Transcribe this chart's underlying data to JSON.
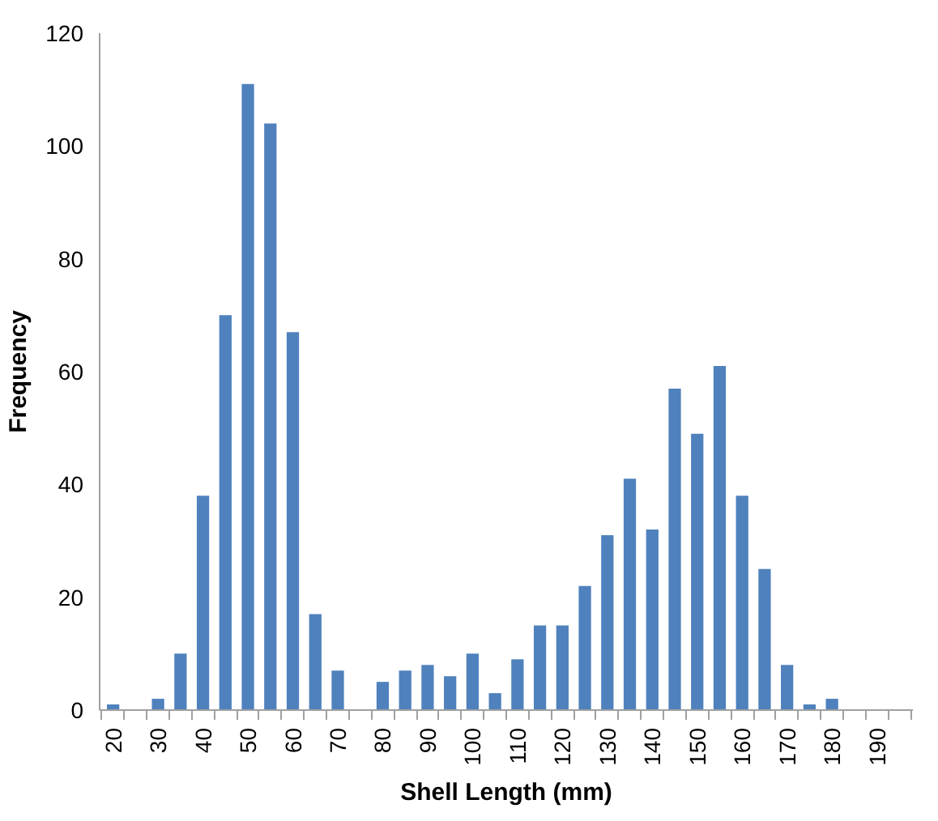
{
  "chart_data": {
    "type": "bar",
    "xlabel": "Shell Length (mm)",
    "ylabel": "Frequency",
    "categories": [
      "20",
      null,
      "30",
      null,
      "40",
      null,
      "50",
      null,
      "60",
      null,
      "70",
      null,
      "80",
      null,
      "90",
      null,
      "100",
      null,
      "110",
      null,
      "120",
      null,
      "130",
      null,
      "140",
      null,
      "150",
      null,
      "160",
      null,
      "170",
      null,
      "180",
      null,
      "190",
      null
    ],
    "values": [
      1,
      0,
      2,
      10,
      38,
      70,
      111,
      104,
      67,
      17,
      7,
      0,
      5,
      7,
      8,
      6,
      10,
      3,
      9,
      15,
      15,
      22,
      31,
      41,
      32,
      57,
      49,
      61,
      38,
      25,
      8,
      1,
      2,
      0,
      0,
      0
    ],
    "color": "#4f81bd",
    "ylim": [
      0,
      120
    ],
    "yticks": [
      0,
      20,
      40,
      60,
      80,
      100,
      120
    ],
    "grid": false
  }
}
